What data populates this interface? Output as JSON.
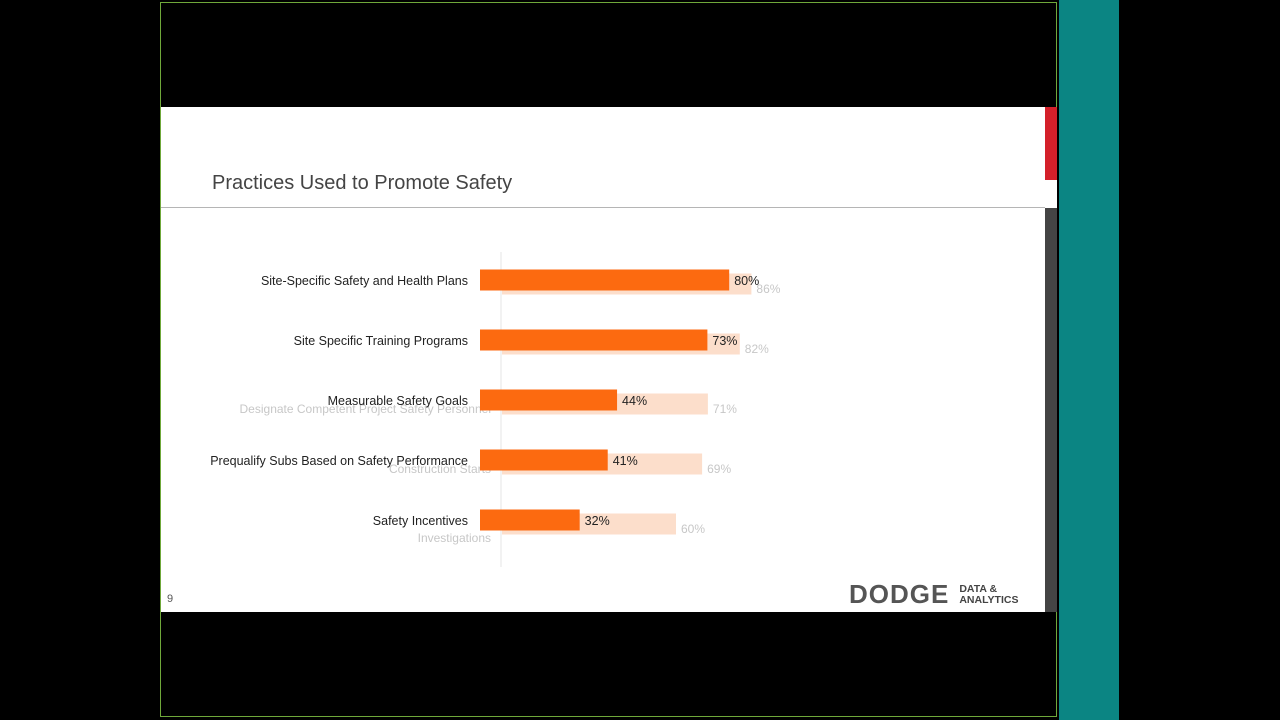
{
  "slide": {
    "title": "Practices Used to Promote Safety",
    "page_number": "9",
    "logo": {
      "main": "DODGE",
      "sub_line1": "DATA &",
      "sub_line2": "ANALYTICS"
    }
  },
  "colors": {
    "bar": "#fc6a10",
    "ghost_bar": "#f7a06a",
    "teal": "#0b8583",
    "red_accent": "#d4202a"
  },
  "chart_data": {
    "type": "bar",
    "orientation": "horizontal",
    "categories": [
      "Site-Specific Safety and Health Plans",
      "Site Specific Training Programs",
      "Measurable Safety Goals",
      "Prequalify Subs Based on Safety Performance",
      "Safety Incentives"
    ],
    "values": [
      80,
      73,
      44,
      41,
      32
    ],
    "value_labels": [
      "80%",
      "73%",
      "44%",
      "41%",
      "32%"
    ],
    "ghost_overlay": {
      "labels": [
        "",
        "",
        "Designate Competent Project Safety Personnel",
        "Construction Starts",
        "Investigations"
      ],
      "values": [
        86,
        82,
        71,
        69,
        60
      ],
      "value_labels": [
        "86%",
        "82%",
        "71%",
        "69%",
        "60%"
      ]
    },
    "xlim": [
      0,
      100
    ],
    "grid": false
  }
}
